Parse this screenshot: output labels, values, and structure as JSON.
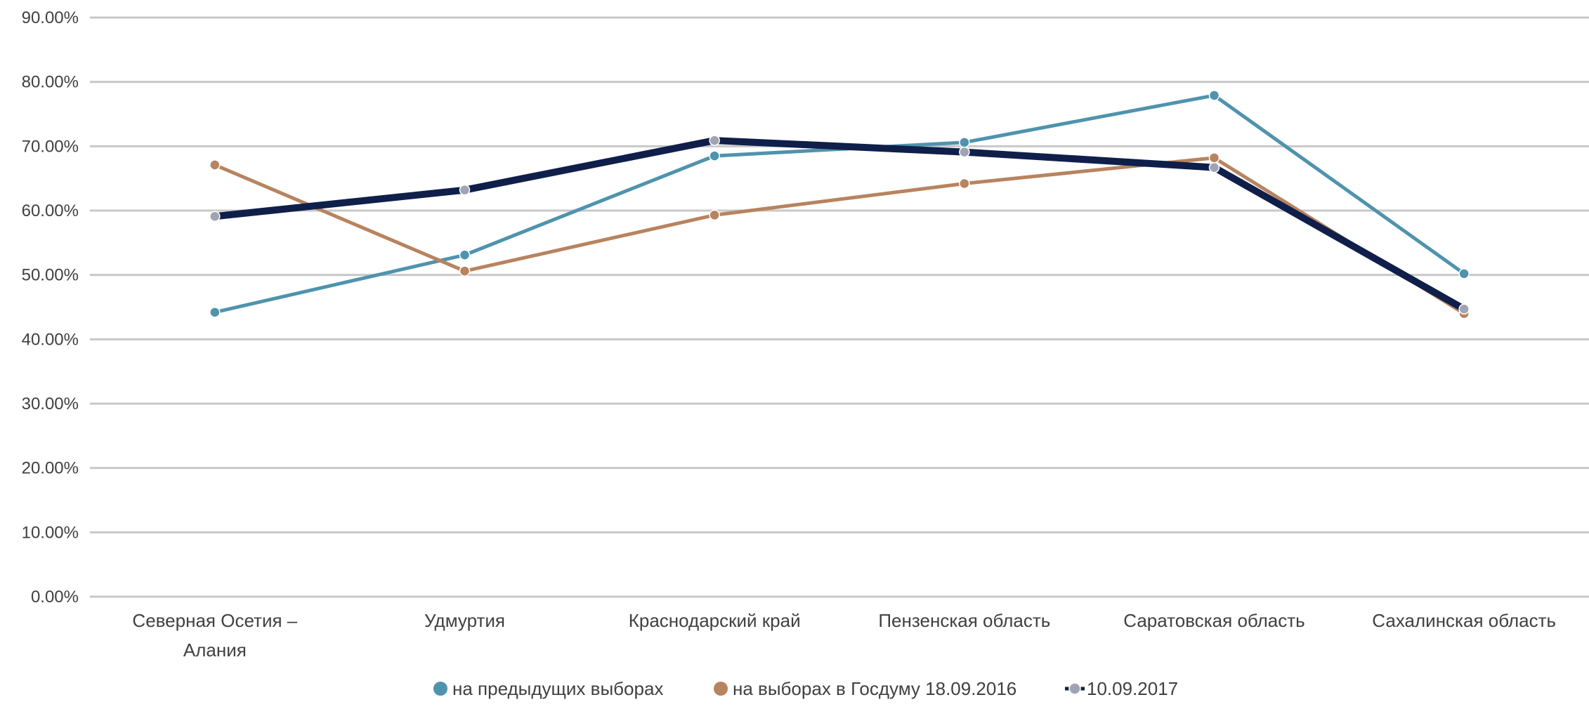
{
  "chart_data": {
    "type": "line",
    "title": "",
    "xlabel": "",
    "ylabel": "",
    "ylim": [
      0,
      90
    ],
    "y_ticks": [
      "0.00%",
      "10.00%",
      "20.00%",
      "30.00%",
      "40.00%",
      "50.00%",
      "60.00%",
      "70.00%",
      "80.00%",
      "90.00%"
    ],
    "categories": [
      [
        "Северная Осетия –",
        "Алания"
      ],
      [
        "Удмуртия"
      ],
      [
        "Краснодарский край"
      ],
      [
        "Пензенская область"
      ],
      [
        "Саратовская область"
      ],
      [
        "Сахалинская область"
      ]
    ],
    "series": [
      {
        "name": "на предыдущих выборах",
        "color": "#4f93ad",
        "values": [
          44.2,
          53.1,
          68.5,
          70.6,
          77.9,
          50.2
        ]
      },
      {
        "name": "на выборах в Госдуму 18.09.2016",
        "color": "#b8835f",
        "values": [
          67.1,
          50.6,
          59.3,
          64.2,
          68.2,
          44.0
        ]
      },
      {
        "name": "10.09.2017",
        "color": "#0f1f4a",
        "values": [
          59.1,
          63.2,
          70.9,
          69.1,
          66.7,
          44.7
        ]
      }
    ],
    "grid": true,
    "legend_position": "bottom"
  }
}
